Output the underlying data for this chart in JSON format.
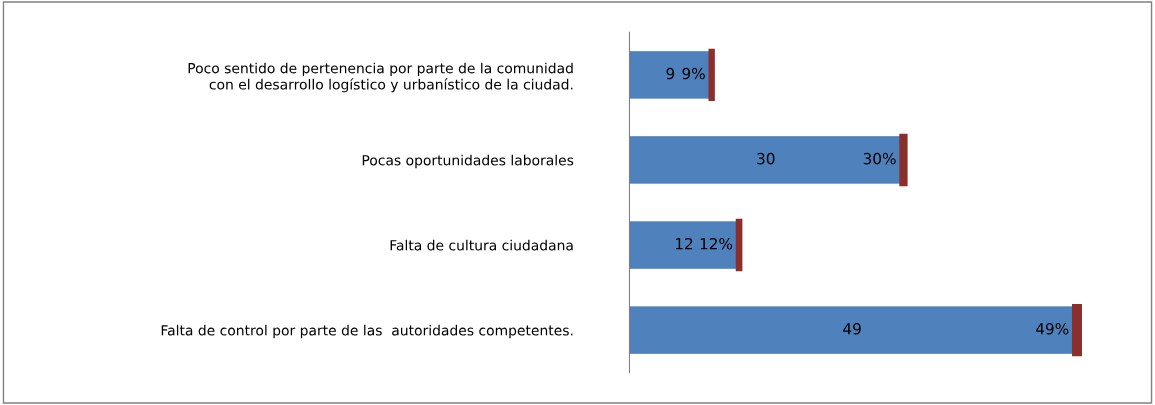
{
  "chart_data": {
    "type": "bar",
    "orientation": "horizontal",
    "stacked": true,
    "categories": [
      "Poco sentido de pertenencia por parte de la comunidad\ncon el desarrollo logístico y urbanístico de la ciudad.",
      "Pocas oportunidades laborales",
      "Falta de cultura ciudadana",
      "Falta de control por parte de las  autoridades competentes."
    ],
    "series": [
      {
        "color": "#4f81bd",
        "values": [
          9,
          30,
          12,
          49
        ],
        "value_labels": [
          "9",
          "30",
          "12",
          "49"
        ]
      },
      {
        "color": "#8b2f2c",
        "values": [
          0.09,
          0.3,
          0.12,
          0.49
        ],
        "value_labels": [
          "9%",
          "30%",
          "12%",
          "49%"
        ]
      }
    ],
    "legend": false,
    "grid": false
  }
}
